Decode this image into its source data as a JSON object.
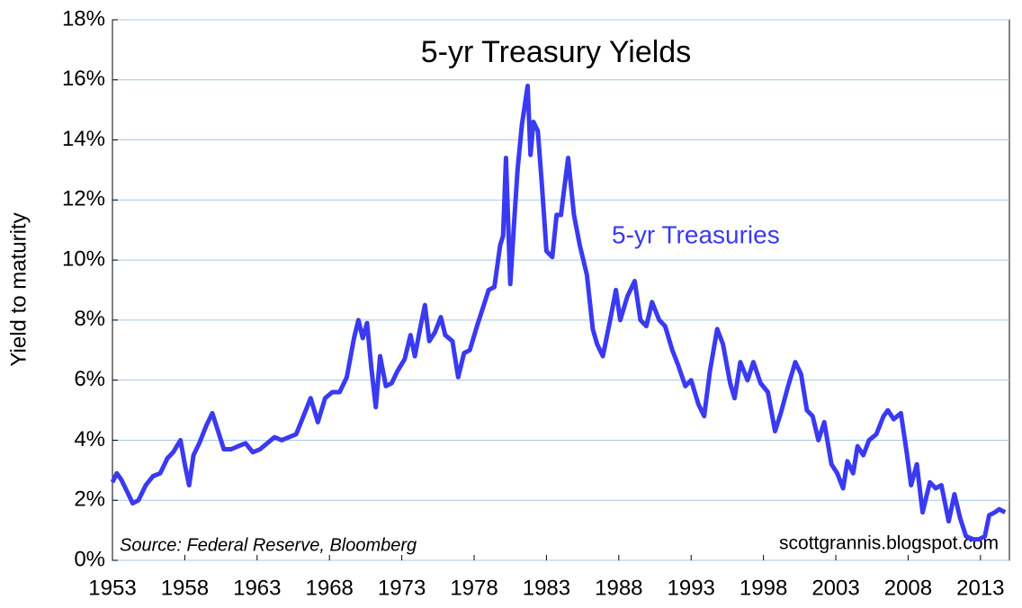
{
  "chart_data": {
    "type": "line",
    "title": "5-yr Treasury Yields",
    "ylabel": "Yield to maturity",
    "source": "Source: Federal Reserve, Bloomberg",
    "credit": "scottgrannis.blogspot.com",
    "xlim": [
      1953,
      2015
    ],
    "xticks": [
      1953,
      1958,
      1963,
      1968,
      1973,
      1978,
      1983,
      1988,
      1993,
      1998,
      2003,
      2008,
      2013
    ],
    "ylim": [
      0,
      18
    ],
    "yticks": [
      {
        "value": 0,
        "label": "0%"
      },
      {
        "value": 2,
        "label": "2%"
      },
      {
        "value": 4,
        "label": "4%"
      },
      {
        "value": 6,
        "label": "6%"
      },
      {
        "value": 8,
        "label": "8%"
      },
      {
        "value": 10,
        "label": "10%"
      },
      {
        "value": 12,
        "label": "12%"
      },
      {
        "value": 14,
        "label": "14%"
      },
      {
        "value": 16,
        "label": "16%"
      },
      {
        "value": 18,
        "label": "18%"
      }
    ],
    "grid": true,
    "x": [
      1953.0,
      1953.3,
      1953.6,
      1954.0,
      1954.4,
      1954.8,
      1955.3,
      1955.8,
      1956.3,
      1956.8,
      1957.2,
      1957.7,
      1958.0,
      1958.3,
      1958.6,
      1959.0,
      1959.5,
      1959.9,
      1960.3,
      1960.7,
      1961.2,
      1961.7,
      1962.2,
      1962.7,
      1963.2,
      1963.7,
      1964.2,
      1964.7,
      1965.2,
      1965.7,
      1966.2,
      1966.7,
      1967.2,
      1967.7,
      1968.2,
      1968.7,
      1969.2,
      1969.7,
      1970.0,
      1970.3,
      1970.6,
      1970.9,
      1971.2,
      1971.5,
      1971.9,
      1972.3,
      1972.7,
      1973.2,
      1973.6,
      1973.9,
      1974.3,
      1974.6,
      1974.9,
      1975.3,
      1975.7,
      1976.0,
      1976.5,
      1976.9,
      1977.3,
      1977.7,
      1978.2,
      1978.6,
      1979.0,
      1979.4,
      1979.8,
      1980.0,
      1980.2,
      1980.5,
      1980.8,
      1981.0,
      1981.3,
      1981.7,
      1981.9,
      1982.1,
      1982.4,
      1982.7,
      1983.0,
      1983.4,
      1983.7,
      1984.0,
      1984.5,
      1984.9,
      1985.3,
      1985.8,
      1986.2,
      1986.5,
      1986.9,
      1987.4,
      1987.8,
      1988.1,
      1988.6,
      1989.1,
      1989.5,
      1989.9,
      1990.3,
      1990.8,
      1991.2,
      1991.7,
      1992.1,
      1992.6,
      1993.0,
      1993.5,
      1993.9,
      1994.3,
      1994.8,
      1995.2,
      1995.7,
      1996.0,
      1996.4,
      1996.9,
      1997.3,
      1997.8,
      1998.3,
      1998.8,
      1999.2,
      1999.7,
      2000.2,
      2000.6,
      2001.0,
      2001.4,
      2001.8,
      2002.2,
      2002.7,
      2003.1,
      2003.5,
      2003.8,
      2004.2,
      2004.5,
      2004.9,
      2005.3,
      2005.8,
      2006.3,
      2006.6,
      2007.0,
      2007.5,
      2007.9,
      2008.2,
      2008.6,
      2009.0,
      2009.5,
      2009.9,
      2010.3,
      2010.8,
      2011.2,
      2011.6,
      2012.0,
      2012.5,
      2012.9,
      2013.3,
      2013.6,
      2014.0,
      2014.3,
      2014.7
    ],
    "series": [
      {
        "name": "5-yr Treasuries",
        "color": "#3a3af0",
        "values": [
          2.6,
          2.9,
          2.7,
          2.3,
          1.9,
          2.0,
          2.5,
          2.8,
          2.9,
          3.4,
          3.6,
          4.0,
          3.2,
          2.5,
          3.5,
          3.9,
          4.5,
          4.9,
          4.3,
          3.7,
          3.7,
          3.8,
          3.9,
          3.6,
          3.7,
          3.9,
          4.1,
          4.0,
          4.1,
          4.2,
          4.8,
          5.4,
          4.6,
          5.4,
          5.6,
          5.6,
          6.1,
          7.4,
          8.0,
          7.4,
          7.9,
          6.4,
          5.1,
          6.8,
          5.8,
          5.9,
          6.3,
          6.7,
          7.5,
          6.8,
          7.8,
          8.5,
          7.3,
          7.6,
          8.1,
          7.5,
          7.3,
          6.1,
          6.9,
          7.0,
          7.8,
          8.4,
          9.0,
          9.1,
          10.5,
          10.8,
          13.4,
          9.2,
          11.5,
          13.0,
          14.5,
          15.8,
          13.5,
          14.6,
          14.3,
          12.4,
          10.3,
          10.1,
          11.5,
          11.5,
          13.4,
          11.5,
          10.5,
          9.5,
          7.7,
          7.2,
          6.8,
          8.0,
          9.0,
          8.0,
          8.8,
          9.3,
          8.0,
          7.8,
          8.6,
          8.0,
          7.8,
          7.0,
          6.5,
          5.8,
          6.0,
          5.2,
          4.8,
          6.3,
          7.7,
          7.2,
          5.9,
          5.4,
          6.6,
          6.0,
          6.6,
          5.9,
          5.6,
          4.3,
          4.9,
          5.8,
          6.6,
          6.2,
          5.0,
          4.8,
          4.0,
          4.6,
          3.2,
          2.9,
          2.4,
          3.3,
          2.9,
          3.8,
          3.5,
          4.0,
          4.2,
          4.8,
          5.0,
          4.7,
          4.9,
          3.6,
          2.5,
          3.2,
          1.6,
          2.6,
          2.4,
          2.5,
          1.3,
          2.2,
          1.4,
          0.8,
          0.7,
          0.7,
          0.8,
          1.5,
          1.6,
          1.7,
          1.6
        ]
      }
    ]
  }
}
